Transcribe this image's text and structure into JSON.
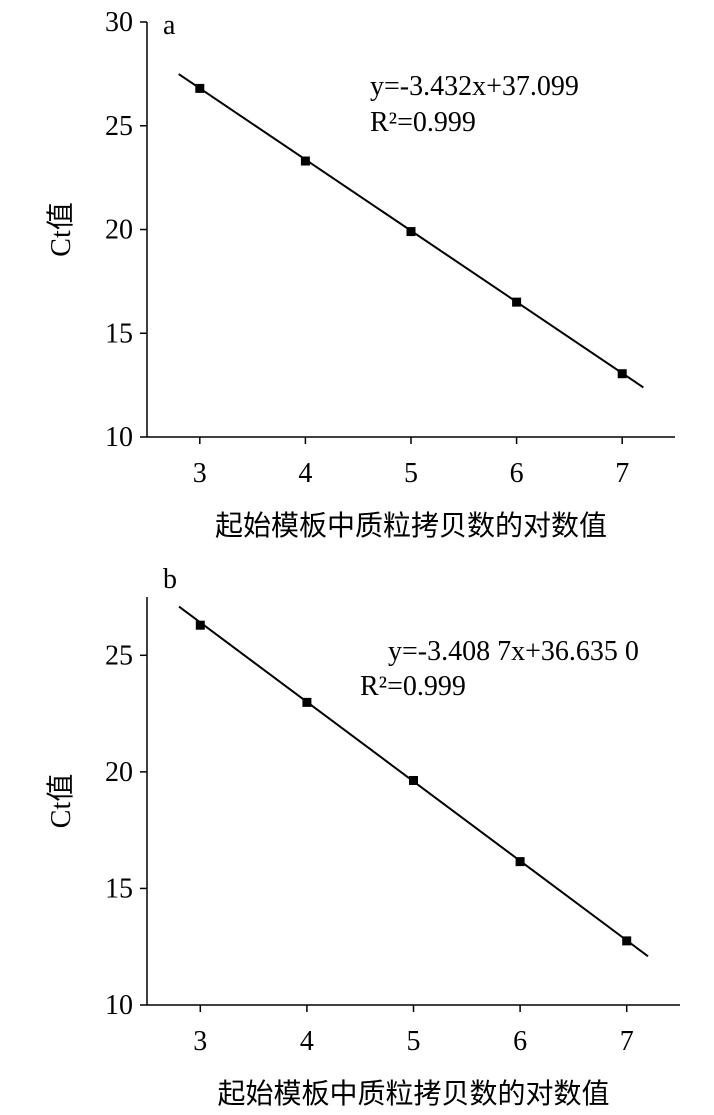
{
  "chart_data": [
    {
      "type": "scatter",
      "panel_label": "a",
      "x_label": "起始模板中质粒拷贝数的对数值",
      "y_label": "Ct值",
      "x": [
        3,
        4,
        5,
        6,
        7
      ],
      "values": [
        26.8,
        23.3,
        19.9,
        16.5,
        13.05
      ],
      "color": "#000000",
      "fit_line": {
        "x": [
          2.8,
          7.2
        ],
        "values": [
          27.49,
          12.39
        ]
      },
      "annotations": [
        "y=-3.432x+37.099",
        "R²=0.999"
      ],
      "xlim": [
        2.5,
        7.5
      ],
      "xticks": [
        3,
        4,
        5,
        6,
        7
      ],
      "ylim": [
        10,
        30
      ],
      "yticks": [
        10,
        15,
        20,
        25,
        30
      ]
    },
    {
      "type": "scatter",
      "panel_label": "b",
      "x_label": "起始模板中质粒拷贝数的对数值",
      "y_label": "Ct值",
      "x": [
        3,
        4,
        5,
        6,
        7
      ],
      "values": [
        26.29,
        22.98,
        19.63,
        16.15,
        12.75
      ],
      "color": "#000000",
      "fit_line": {
        "x": [
          2.8,
          7.2
        ],
        "values": [
          27.09,
          12.09
        ]
      },
      "annotations": [
        "y=-3.408 7x+36.635 0",
        "R²=0.999"
      ],
      "xlim": [
        2.5,
        7.5
      ],
      "xticks": [
        3,
        4,
        5,
        6,
        7
      ],
      "ylim": [
        10,
        27.5
      ],
      "yticks": [
        10,
        15,
        20,
        25
      ]
    }
  ]
}
